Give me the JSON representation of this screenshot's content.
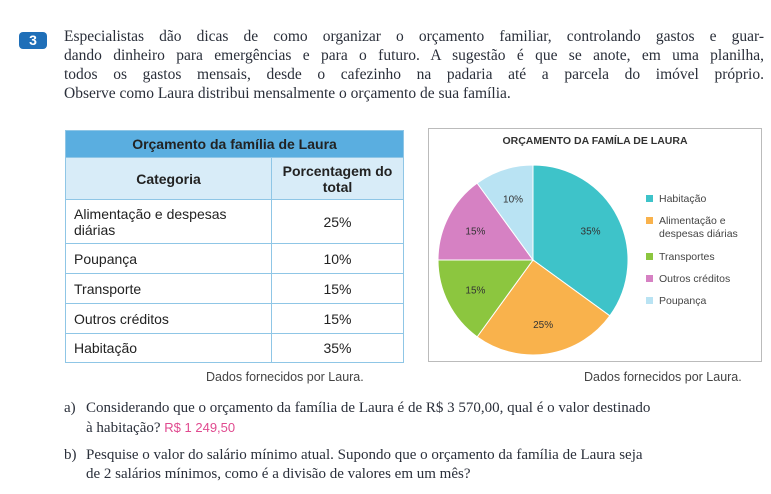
{
  "exercise": {
    "number": "3",
    "lines": [
      "Especialistas dão dicas de como organizar o orçamento familiar, controlando gastos e guar-",
      "dando dinheiro para emergências e para o futuro. A sugestão é que se anote, em uma planilha,",
      "todos os gastos mensais, desde o cafezinho na padaria até a parcela do imóvel próprio.",
      "Observe como Laura distribui mensalmente o orçamento de sua família."
    ]
  },
  "table": {
    "title": "Orçamento da família de Laura",
    "header": [
      "Categoria",
      "Porcentagem do total"
    ],
    "rows": [
      [
        "Alimentação e despesas diárias",
        "25%"
      ],
      [
        "Poupança",
        "10%"
      ],
      [
        "Transporte",
        "15%"
      ],
      [
        "Outros créditos",
        "15%"
      ],
      [
        "Habitação",
        "35%"
      ]
    ],
    "source": "Dados fornecidos por Laura."
  },
  "chart_data": {
    "type": "pie",
    "title": "ORÇAMENTO DA FAMÍLA DE LAURA",
    "categories": [
      "Habitação",
      "Alimentação e despesas diárias",
      "Transportes",
      "Outros créditos",
      "Poupança"
    ],
    "values": [
      35,
      25,
      15,
      15,
      10
    ],
    "value_labels": [
      "35%",
      "25%",
      "15%",
      "15%",
      "10%"
    ],
    "colors": [
      "#3ec3c9",
      "#f9b24c",
      "#8cc63f",
      "#d681c3",
      "#b9e3f3"
    ],
    "legend": "right",
    "source": "Dados fornecidos por Laura."
  },
  "questions": [
    {
      "label": "a)",
      "lines": [
        "Considerando que o orçamento da família de Laura é de R$ 3 570,00, qual é o valor destinado",
        "à habitação?"
      ],
      "answer": "R$ 1 249,50"
    },
    {
      "label": "b)",
      "lines": [
        "Pesquise o valor do salário mínimo atual. Supondo que o orçamento da família de Laura seja",
        "de 2 salários mínimos, como é a divisão de valores em um mês?"
      ]
    }
  ]
}
